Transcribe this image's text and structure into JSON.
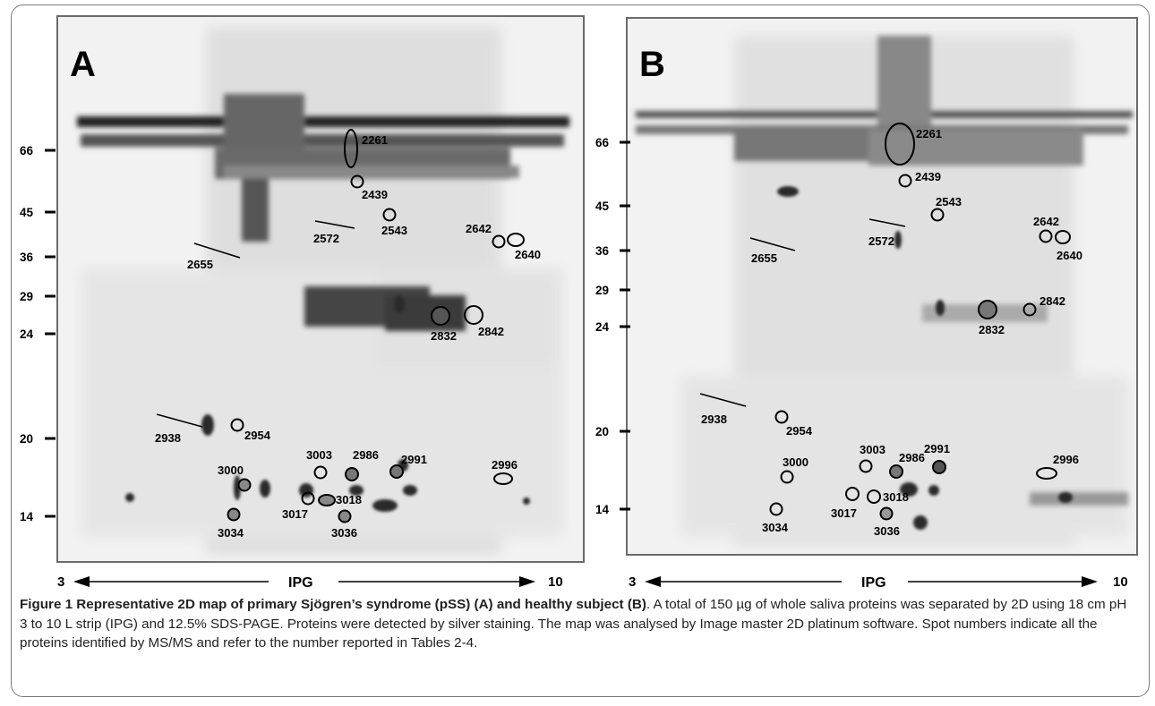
{
  "panels": [
    {
      "letter": "A",
      "mw_markers": [
        {
          "label": "66"
        },
        {
          "label": "45"
        },
        {
          "label": "36"
        },
        {
          "label": "29"
        },
        {
          "label": "24"
        },
        {
          "label": "20"
        },
        {
          "label": "14"
        }
      ],
      "spots": [
        "2261",
        "2439",
        "2543",
        "2572",
        "2642",
        "2640",
        "2655",
        "2832",
        "2842",
        "2938",
        "2954",
        "3003",
        "2986",
        "2991",
        "2996",
        "3000",
        "3017",
        "3018",
        "3034",
        "3036"
      ],
      "ipg": {
        "left": "3",
        "center": "IPG",
        "right": "10"
      }
    },
    {
      "letter": "B",
      "mw_markers": [
        {
          "label": "66"
        },
        {
          "label": "45"
        },
        {
          "label": "36"
        },
        {
          "label": "29"
        },
        {
          "label": "24"
        },
        {
          "label": "20"
        },
        {
          "label": "14"
        }
      ],
      "spots": [
        "2261",
        "2439",
        "2543",
        "2572",
        "2642",
        "2640",
        "2655",
        "2832",
        "2842",
        "2938",
        "2954",
        "3003",
        "2986",
        "2991",
        "2996",
        "3000",
        "3017",
        "3018",
        "3034",
        "3036"
      ],
      "ipg": {
        "left": "3",
        "center": "IPG",
        "right": "10"
      }
    }
  ],
  "caption": {
    "title": "Figure 1 Representative 2D map of primary Sjögren’s syndrome (pSS) (A) and healthy subject (B)",
    "body": ". A total of 150 µg of whole saliva proteins was separated by 2D using 18 cm pH 3 to 10 L strip (IPG) and 12.5% SDS-PAGE. Proteins were detected by silver staining. The map was analysed by Image master 2D platinum software. Spot numbers indicate all the proteins identified by MS/MS and refer to the number reported in Tables 2-4."
  }
}
